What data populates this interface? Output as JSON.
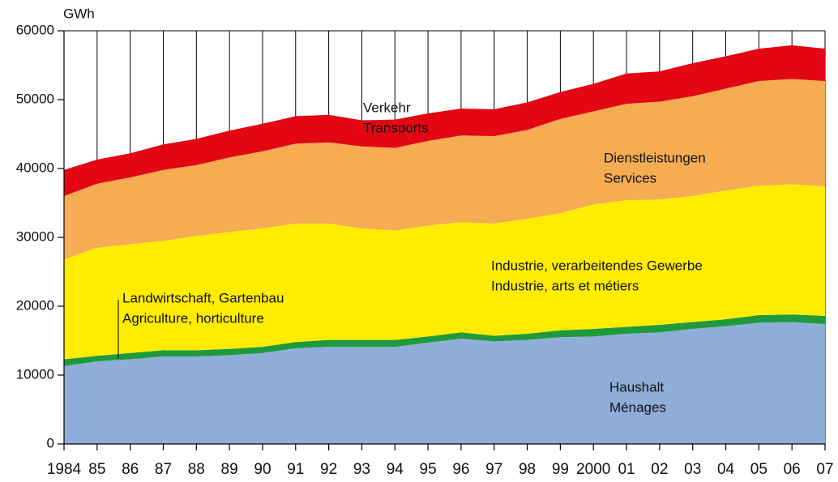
{
  "chart_data": {
    "type": "stacked_area",
    "y_label": "GWh",
    "categories": [
      "1984",
      "85",
      "86",
      "87",
      "88",
      "89",
      "90",
      "91",
      "92",
      "93",
      "94",
      "95",
      "96",
      "97",
      "98",
      "99",
      "2000",
      "01",
      "02",
      "03",
      "04",
      "05",
      "06",
      "07"
    ],
    "ylim": [
      0,
      60000
    ],
    "yticks": [
      0,
      10000,
      20000,
      30000,
      40000,
      50000,
      60000
    ],
    "grid": true,
    "series": [
      {
        "name": "Haushalt",
        "name_fr": "Ménages",
        "color": "#8eadd8",
        "values": [
          11300,
          12000,
          12300,
          12700,
          12700,
          12900,
          13200,
          13900,
          14100,
          14100,
          14100,
          14700,
          15300,
          14900,
          15100,
          15500,
          15600,
          16000,
          16200,
          16700,
          17100,
          17600,
          17700,
          17400
        ]
      },
      {
        "name": "Landwirtschaft, Gartenbau",
        "name_fr": "Agriculture, horticulture",
        "color": "#1e9a3c",
        "values": [
          1000,
          800,
          900,
          900,
          900,
          900,
          900,
          900,
          1000,
          1000,
          1000,
          900,
          900,
          800,
          900,
          1000,
          1100,
          1000,
          1100,
          1000,
          1000,
          1100,
          1100,
          1200
        ]
      },
      {
        "name": "Industrie, verarbeitendes Gewerbe",
        "name_fr": "Industrie, arts et métiers",
        "color": "#ffec00",
        "values": [
          14500,
          15700,
          15800,
          15900,
          16600,
          17000,
          17200,
          17200,
          16900,
          16200,
          15900,
          16100,
          16000,
          16300,
          16700,
          17000,
          18100,
          18400,
          18200,
          18300,
          18700,
          18800,
          18900,
          18800
        ]
      },
      {
        "name": "Dienstleistungen",
        "name_fr": "Services",
        "color": "#f5ac52",
        "values": [
          9200,
          9300,
          9700,
          10300,
          10300,
          10800,
          11200,
          11600,
          11800,
          11900,
          12000,
          12300,
          12600,
          12700,
          12900,
          13700,
          13500,
          14000,
          14200,
          14500,
          14800,
          15200,
          15300,
          15300
        ]
      },
      {
        "name": "Verkehr",
        "name_fr": "Transports",
        "color": "#e30613",
        "values": [
          3800,
          3500,
          3500,
          3700,
          3800,
          3900,
          4000,
          4000,
          4000,
          3800,
          4100,
          4000,
          3900,
          3900,
          4000,
          3900,
          4000,
          4400,
          4400,
          4800,
          4700,
          4700,
          4900,
          4700
        ]
      }
    ]
  }
}
